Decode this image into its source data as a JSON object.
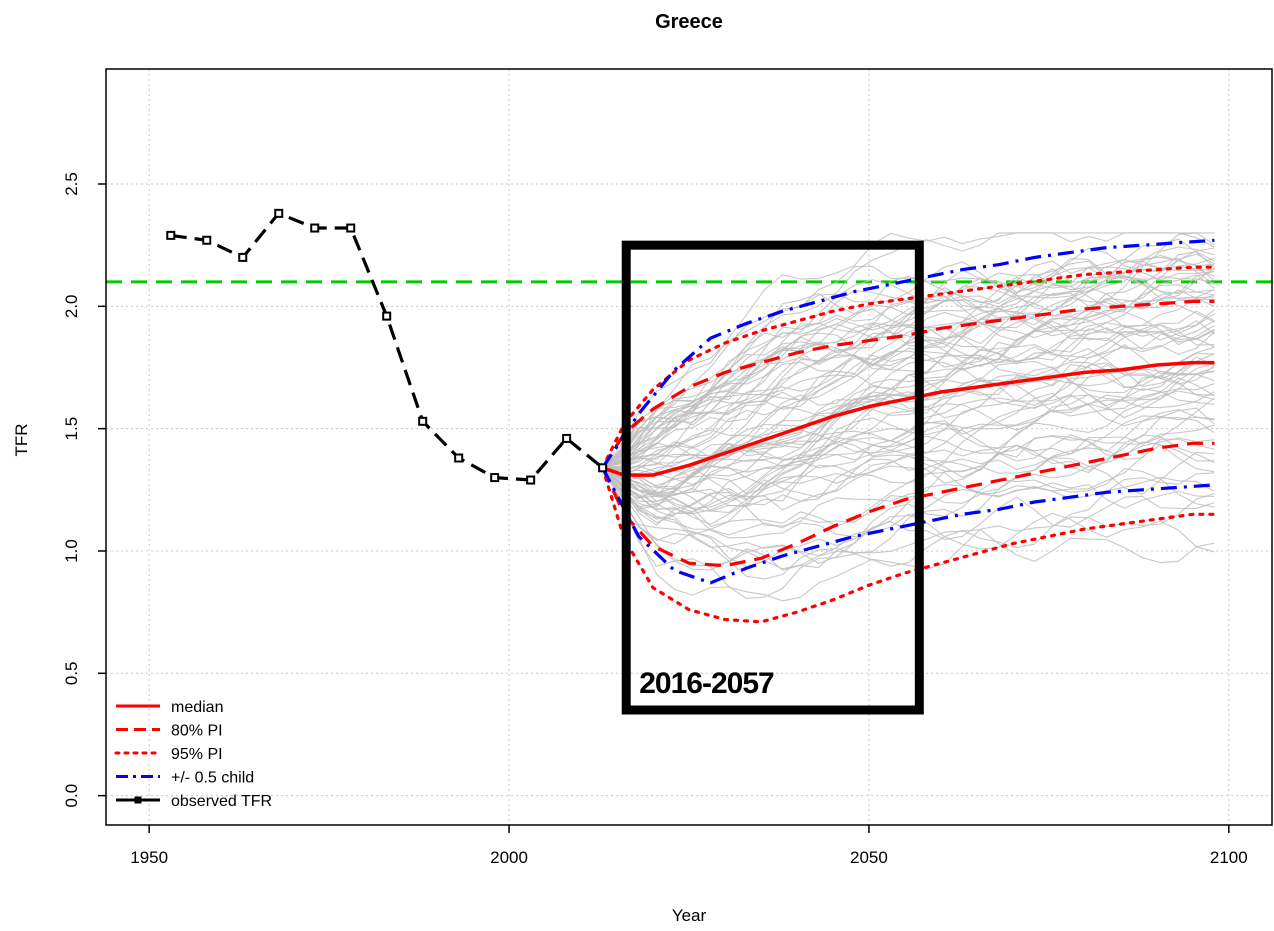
{
  "chart_data": {
    "type": "line",
    "title": "Greece",
    "xlabel": "Year",
    "ylabel": "TFR",
    "xlim": [
      1944,
      2106
    ],
    "ylim": [
      -0.12,
      2.97
    ],
    "x_ticks": [
      1950,
      2000,
      2050,
      2100
    ],
    "y_ticks": [
      0.0,
      0.5,
      1.0,
      1.5,
      2.0,
      2.5
    ],
    "y_tick_labels": [
      "0.0",
      "0.5",
      "1.0",
      "1.5",
      "2.0",
      "2.5"
    ],
    "grid": true,
    "legend_position": "bottom-left",
    "colors": {
      "median": "#ff0000",
      "pi80": "#ff0000",
      "pi95": "#ff0000",
      "half_child": "#0000ff",
      "observed": "#000000",
      "replacement": "#00cc00",
      "trajectories": "#bebebe"
    },
    "reference_line": {
      "y": 2.1
    },
    "series": [
      {
        "name": "observed TFR",
        "style": "solid-markers",
        "x": [
          1953,
          1958,
          1963,
          1968,
          1973,
          1978,
          1983,
          1988,
          1993,
          1998,
          2003,
          2008,
          2013
        ],
        "y": [
          2.29,
          2.27,
          2.2,
          2.38,
          2.32,
          2.32,
          1.96,
          1.53,
          1.38,
          1.3,
          1.29,
          1.46,
          1.34
        ]
      },
      {
        "name": "median",
        "style": "solid",
        "x": [
          2013,
          2016,
          2020,
          2025,
          2030,
          2035,
          2040,
          2045,
          2050,
          2055,
          2060,
          2065,
          2070,
          2075,
          2080,
          2085,
          2090,
          2095,
          2098
        ],
        "y": [
          1.34,
          1.31,
          1.31,
          1.35,
          1.4,
          1.45,
          1.5,
          1.55,
          1.59,
          1.62,
          1.65,
          1.67,
          1.69,
          1.71,
          1.73,
          1.74,
          1.76,
          1.77,
          1.77
        ]
      },
      {
        "name": "80% PI",
        "style": "dashed",
        "upper": {
          "x": [
            2013,
            2016,
            2020,
            2025,
            2030,
            2035,
            2040,
            2045,
            2050,
            2055,
            2060,
            2065,
            2070,
            2075,
            2080,
            2085,
            2090,
            2095,
            2098
          ],
          "y": [
            1.34,
            1.48,
            1.58,
            1.67,
            1.73,
            1.77,
            1.81,
            1.84,
            1.86,
            1.88,
            1.91,
            1.93,
            1.95,
            1.97,
            1.99,
            2.0,
            2.01,
            2.02,
            2.02
          ]
        },
        "lower": {
          "x": [
            2013,
            2016,
            2020,
            2025,
            2030,
            2035,
            2040,
            2045,
            2050,
            2055,
            2060,
            2065,
            2070,
            2075,
            2080,
            2085,
            2090,
            2095,
            2098
          ],
          "y": [
            1.34,
            1.15,
            1.02,
            0.95,
            0.94,
            0.97,
            1.03,
            1.1,
            1.16,
            1.21,
            1.24,
            1.27,
            1.3,
            1.33,
            1.36,
            1.39,
            1.42,
            1.44,
            1.44
          ]
        }
      },
      {
        "name": "95% PI",
        "style": "dotted",
        "upper": {
          "x": [
            2013,
            2016,
            2020,
            2025,
            2030,
            2035,
            2040,
            2045,
            2050,
            2055,
            2060,
            2065,
            2070,
            2075,
            2080,
            2085,
            2090,
            2095,
            2098
          ],
          "y": [
            1.34,
            1.52,
            1.66,
            1.78,
            1.85,
            1.9,
            1.94,
            1.98,
            2.01,
            2.03,
            2.05,
            2.07,
            2.09,
            2.11,
            2.13,
            2.14,
            2.15,
            2.16,
            2.16
          ]
        },
        "lower": {
          "x": [
            2013,
            2016,
            2020,
            2025,
            2030,
            2035,
            2040,
            2045,
            2050,
            2055,
            2060,
            2065,
            2070,
            2075,
            2080,
            2085,
            2090,
            2095,
            2098
          ],
          "y": [
            1.34,
            1.05,
            0.85,
            0.76,
            0.72,
            0.71,
            0.75,
            0.8,
            0.86,
            0.91,
            0.95,
            0.99,
            1.03,
            1.06,
            1.09,
            1.11,
            1.13,
            1.15,
            1.15
          ]
        }
      },
      {
        "name": "+/- 0.5 child",
        "style": "dot-dash",
        "upper": {
          "x": [
            2013,
            2018,
            2023,
            2028,
            2033,
            2038,
            2043,
            2048,
            2053,
            2058,
            2063,
            2068,
            2073,
            2078,
            2083,
            2088,
            2093,
            2098
          ],
          "y": [
            1.34,
            1.56,
            1.74,
            1.87,
            1.93,
            1.98,
            2.02,
            2.06,
            2.09,
            2.12,
            2.15,
            2.17,
            2.2,
            2.22,
            2.24,
            2.25,
            2.26,
            2.27
          ]
        },
        "lower": {
          "x": [
            2013,
            2018,
            2023,
            2028,
            2033,
            2038,
            2043,
            2048,
            2053,
            2058,
            2063,
            2068,
            2073,
            2078,
            2083,
            2088,
            2093,
            2098
          ],
          "y": [
            1.34,
            1.06,
            0.92,
            0.87,
            0.93,
            0.98,
            1.02,
            1.06,
            1.09,
            1.12,
            1.15,
            1.17,
            1.2,
            1.22,
            1.24,
            1.25,
            1.26,
            1.27
          ]
        }
      }
    ],
    "legend": [
      {
        "label": "median",
        "style": "solid"
      },
      {
        "label": "80% PI",
        "style": "dashed"
      },
      {
        "label": "95% PI",
        "style": "dotted"
      },
      {
        "label": "+/- 0.5 child",
        "style": "dot-dash"
      },
      {
        "label": "observed TFR",
        "style": "solid-markers"
      }
    ],
    "annotation": {
      "text": "2016-2057",
      "x_range": [
        2016,
        2057
      ],
      "y_range": [
        0.35,
        2.25
      ]
    }
  }
}
